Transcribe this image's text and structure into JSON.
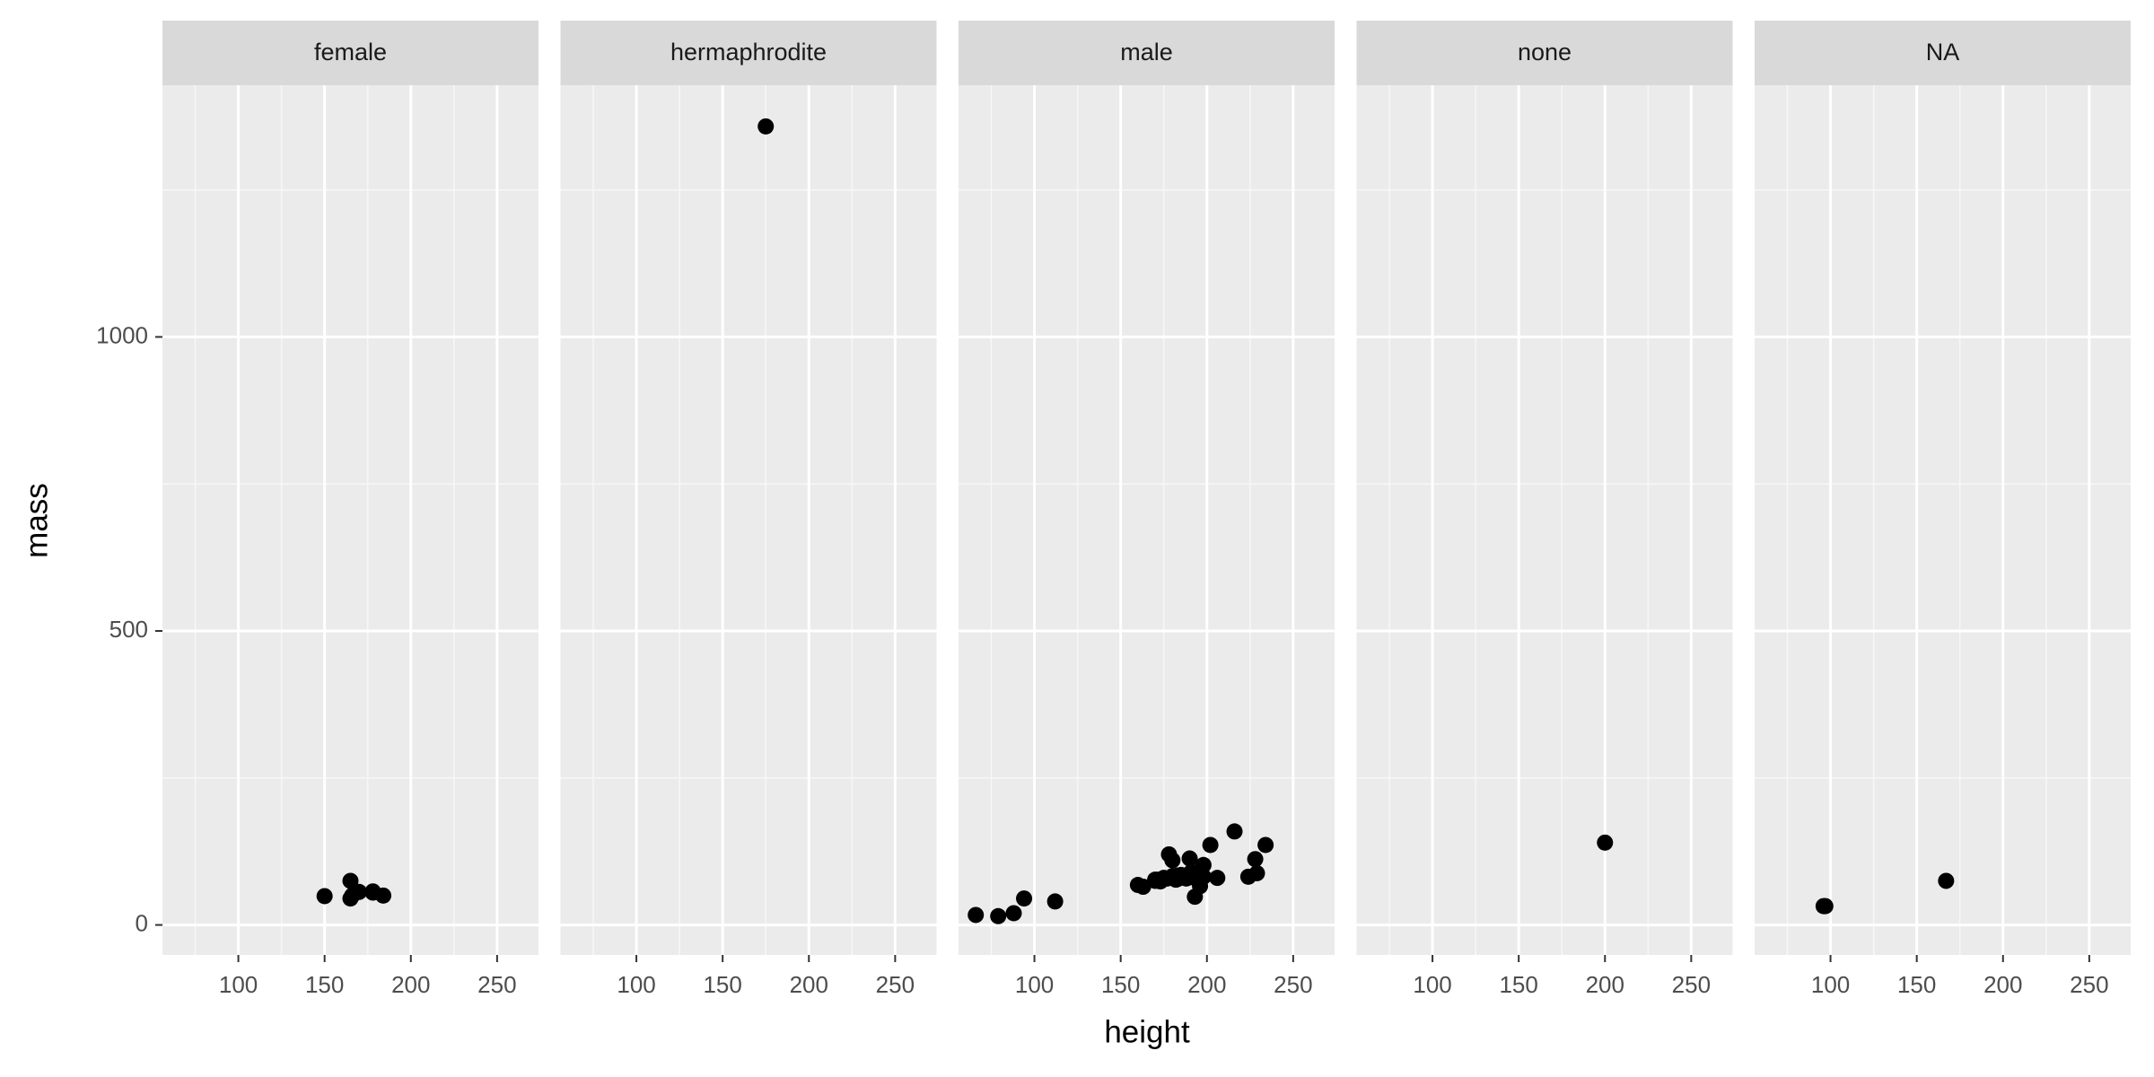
{
  "chart_data": {
    "type": "scatter",
    "x_label": "height",
    "y_label": "mass",
    "color": "#000000",
    "grid": true,
    "xlim": [
      56,
      274
    ],
    "ylim": [
      -51,
      1428
    ],
    "xticks": [
      100,
      150,
      200,
      250
    ],
    "yticks": [
      0,
      500,
      1000
    ],
    "facets": [
      {
        "name": "female",
        "x": [
          150,
          165,
          165,
          170,
          166,
          168,
          184,
          178,
          178
        ],
        "y": [
          49,
          75,
          45,
          56.2,
          50,
          55,
          50,
          55,
          57
        ]
      },
      {
        "name": "hermaphrodite",
        "x": [
          175
        ],
        "y": [
          1358
        ]
      },
      {
        "name": "male",
        "x": [
          172,
          202,
          178,
          183,
          182,
          188,
          228,
          180,
          173,
          170,
          180,
          66,
          170,
          183,
          190,
          177,
          175,
          180,
          88,
          160,
          193,
          191,
          112,
          196,
          224,
          175,
          79,
          94,
          163,
          188,
          198,
          196,
          188,
          185,
          193,
          198,
          183,
          193,
          183,
          216,
          234,
          188,
          229,
          206
        ],
        "y": [
          77,
          136,
          120,
          84,
          77,
          84,
          112,
          80,
          74,
          77,
          110,
          17,
          75,
          78.2,
          113,
          79,
          79,
          83,
          20,
          68,
          89,
          90,
          40,
          66,
          82,
          80,
          15,
          45,
          65,
          84,
          82,
          87,
          80,
          85,
          48,
          102,
          80,
          80,
          79,
          159,
          136,
          79,
          88,
          80
        ]
      },
      {
        "name": "none",
        "x": [
          200
        ],
        "y": [
          140
        ]
      },
      {
        "name": "NA",
        "x": [
          96,
          97,
          167
        ],
        "y": [
          32,
          32,
          75
        ]
      }
    ]
  }
}
